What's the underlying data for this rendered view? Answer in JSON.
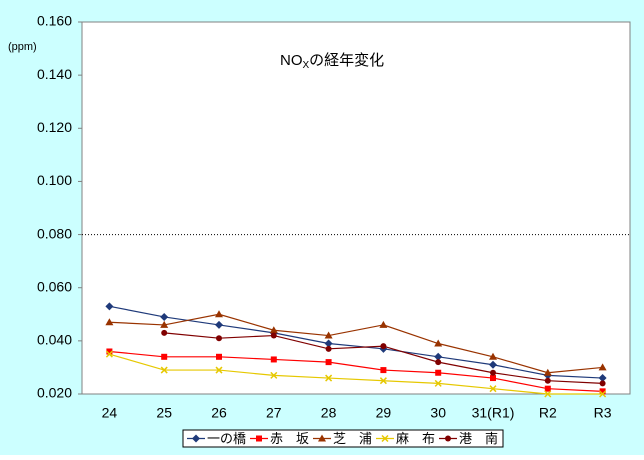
{
  "chart_data": {
    "type": "line",
    "title": [
      "NO",
      "X",
      "の経年変化"
    ],
    "y_unit": "(ppm)",
    "categories": [
      "24",
      "25",
      "26",
      "27",
      "28",
      "29",
      "30",
      "31(R1)",
      "R2",
      "R3"
    ],
    "ylim": [
      0.02,
      0.16
    ],
    "yticks": [
      {
        "value": 0.02,
        "label": "0.020"
      },
      {
        "value": 0.04,
        "label": "0.040"
      },
      {
        "value": 0.06,
        "label": "0.060"
      },
      {
        "value": 0.08,
        "label": "0.080"
      },
      {
        "value": 0.1,
        "label": "0.100"
      },
      {
        "value": 0.12,
        "label": "0.120"
      },
      {
        "value": 0.14,
        "label": "0.140"
      },
      {
        "value": 0.16,
        "label": "0.160"
      }
    ],
    "reference_line": 0.08,
    "grid": false,
    "legend": "bottom",
    "series": [
      {
        "name": "一の橋",
        "color": "#1f3a7a",
        "marker": "diamond",
        "values": [
          0.053,
          0.049,
          0.046,
          0.043,
          0.039,
          0.037,
          0.034,
          0.031,
          0.027,
          0.026
        ]
      },
      {
        "name": "赤　坂",
        "color": "#ff0000",
        "marker": "square",
        "values": [
          0.036,
          0.034,
          0.034,
          0.033,
          0.032,
          0.029,
          0.028,
          0.026,
          0.022,
          0.021
        ]
      },
      {
        "name": "芝　浦",
        "color": "#993300",
        "marker": "triangle",
        "values": [
          0.047,
          0.046,
          0.05,
          0.044,
          0.042,
          0.046,
          0.039,
          0.034,
          0.028,
          0.03
        ]
      },
      {
        "name": "麻　布",
        "color": "#e6c800",
        "marker": "x",
        "values": [
          0.035,
          0.029,
          0.029,
          0.027,
          0.026,
          0.025,
          0.024,
          0.022,
          0.02,
          0.02
        ]
      },
      {
        "name": "港　南",
        "color": "#800000",
        "marker": "circle",
        "values": [
          null,
          0.043,
          0.041,
          0.042,
          0.037,
          0.038,
          0.032,
          0.028,
          0.025,
          0.024
        ]
      }
    ]
  }
}
